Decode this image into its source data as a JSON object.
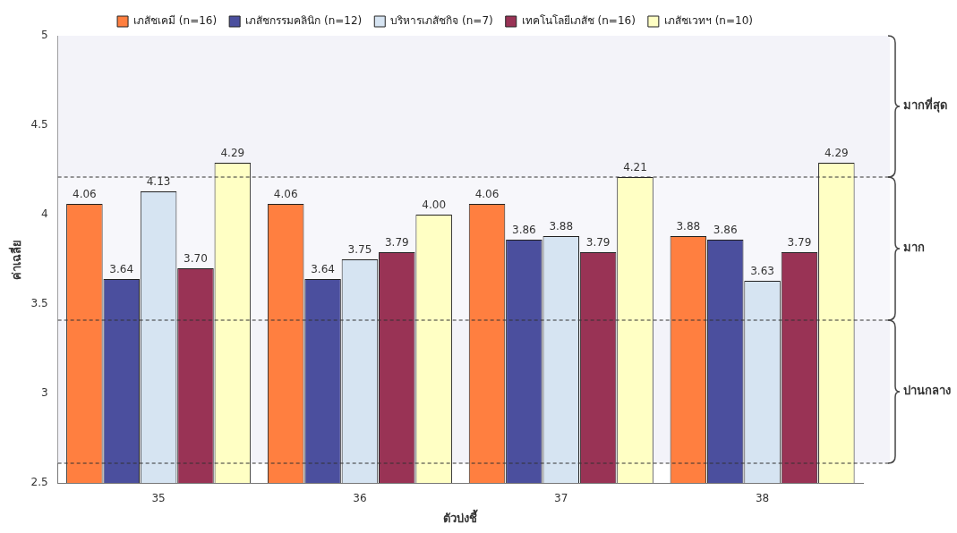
{
  "chart_data": {
    "type": "bar",
    "xlabel": "ตัวบ่งชี้",
    "ylabel": "ค่าเฉลี่ย",
    "categories": [
      "35",
      "36",
      "37",
      "38"
    ],
    "series": [
      {
        "name": "เภสัชเคมี (n=16)",
        "color": "#ff7f40",
        "values": [
          4.06,
          4.06,
          4.06,
          3.88
        ],
        "value_labels": [
          "4.06",
          "4.06",
          "4.06",
          "3.88"
        ]
      },
      {
        "name": "เภสัชกรรมคลินิก (n=12)",
        "color": "#4b4f9e",
        "values": [
          3.64,
          3.64,
          3.86,
          3.86
        ],
        "value_labels": [
          "3.64",
          "3.64",
          "3.86",
          "3.86"
        ]
      },
      {
        "name": "บริหารเภสัชกิจ (n=7)",
        "color": "#d6e4f2",
        "values": [
          4.13,
          3.75,
          3.88,
          3.63
        ],
        "value_labels": [
          "4.13",
          "3.75",
          "3.88",
          "3.63"
        ]
      },
      {
        "name": "เทคโนโลยีเภสัช (n=16)",
        "color": "#993355",
        "values": [
          3.7,
          3.79,
          3.79,
          3.79
        ],
        "value_labels": [
          "3.70",
          "3.79",
          "3.79",
          "3.79"
        ]
      },
      {
        "name": "เภสัชเวทฯ (n=10)",
        "color": "#ffffc4",
        "values": [
          4.29,
          4.0,
          4.21,
          4.29
        ],
        "value_labels": [
          "4.29",
          "4.00",
          "4.21",
          "4.29"
        ]
      }
    ],
    "ylim": [
      2.5,
      5
    ],
    "yticks": [
      2.5,
      3,
      3.5,
      4,
      4.5,
      5
    ],
    "grid": false,
    "legend": "top",
    "ref_lines": [
      {
        "axis": "y",
        "value": 4.21,
        "line_style": "dashed",
        "color": "#333333"
      },
      {
        "axis": "y",
        "value": 3.41,
        "line_style": "dashed",
        "color": "#333333"
      },
      {
        "axis": "y",
        "value": 2.61,
        "line_style": "dashed",
        "color": "#333333"
      }
    ],
    "bands": [
      {
        "axis": "y",
        "from": 4.21,
        "to": 5,
        "label": "มากที่สุด",
        "color": "#f3f3f9"
      },
      {
        "axis": "y",
        "from": 3.41,
        "to": 4.21,
        "label": "มาก",
        "color": "#f7f7fb"
      },
      {
        "axis": "y",
        "from": 2.61,
        "to": 3.41,
        "label": "ปานกลาง",
        "color": "#f3f3f9"
      }
    ]
  }
}
